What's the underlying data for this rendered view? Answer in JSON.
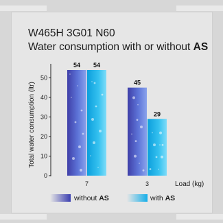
{
  "title": {
    "line1": "W465H 3G01 N60",
    "line2_prefix": "Water consumption with or without ",
    "line2_bold": "AS"
  },
  "chart_data": {
    "type": "bar",
    "categories": [
      "7",
      "3"
    ],
    "series": [
      {
        "name": "without AS",
        "values": [
          54,
          45
        ],
        "color": "#4a56c8"
      },
      {
        "name": "with AS",
        "values": [
          54,
          29
        ],
        "color": "#1fb4ea"
      }
    ],
    "ylabel": "Total water consumption (ltr)",
    "xlabel": "Load (kg)",
    "yticks": [
      0,
      10,
      20,
      30,
      40,
      50
    ],
    "ylim": [
      0,
      54
    ],
    "legend_position": "bottom",
    "legend": [
      {
        "prefix": "without ",
        "bold": "AS"
      },
      {
        "prefix": "with ",
        "bold": "AS"
      }
    ],
    "data_labels": true,
    "grid": false
  }
}
